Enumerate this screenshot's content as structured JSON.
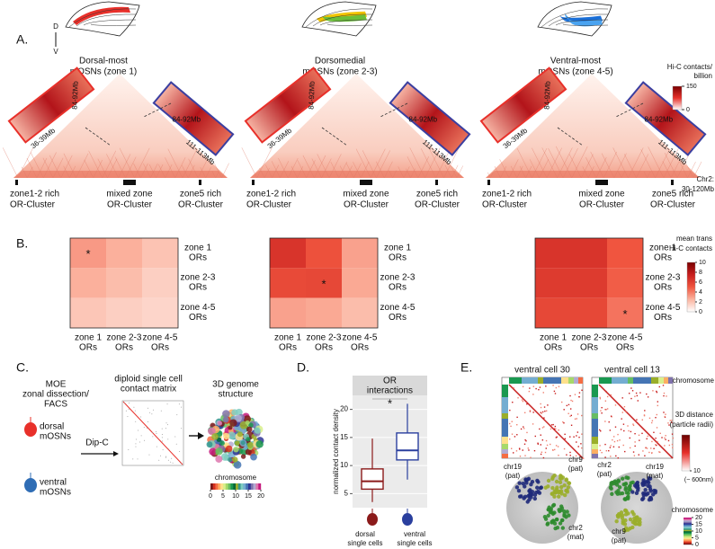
{
  "chromosome_colors": [
    "#7a1a1a",
    "#d7301f",
    "#f46d43",
    "#fdae61",
    "#fee08b",
    "#d9ef8b",
    "#a6d96a",
    "#66bd63",
    "#1a9850",
    "#006837",
    "#9aae2a",
    "#35978f",
    "#80cdc1",
    "#74add1",
    "#4575b4",
    "#313695",
    "#8073ac",
    "#b2abd2",
    "#de77ae",
    "#c51b7d"
  ],
  "panel_a": {
    "label": "A.",
    "axis": [
      "D",
      "V"
    ],
    "columns": [
      {
        "title": [
          "Dorsal-most",
          "mOSNs (zone 1)"
        ],
        "highlight": [
          "#e8302a"
        ]
      },
      {
        "title": [
          "Dorsomedial",
          "mOSNs (zone 2-3)"
        ],
        "highlight": [
          "#f2c400",
          "#6cbf3a"
        ]
      },
      {
        "title": [
          "Ventral-most",
          "mOSNs (zone 4-5)"
        ],
        "highlight": [
          "#1a6fd8",
          "#4aa3f0"
        ]
      }
    ],
    "inset_left": {
      "labels": [
        "36-39Mb",
        "84-92Mb"
      ],
      "color": "#e8302a"
    },
    "inset_right": {
      "labels": [
        "84-92Mb",
        "111-113Mb"
      ],
      "color": "#3b3fa0"
    },
    "clusters": [
      {
        "lines": [
          "zone1-2 rich",
          "OR-Cluster"
        ],
        "color": "#e8302a"
      },
      {
        "lines": [
          "mixed zone",
          "OR-Cluster"
        ],
        "color": "#111111"
      },
      {
        "lines": [
          "zone5 rich",
          "OR-Cluster"
        ],
        "color": "#3b3fa0"
      }
    ],
    "chromosome": [
      "Chr2:",
      "30-120Mb"
    ],
    "colorbar": {
      "title": [
        "Hi-C contacts/",
        "billion"
      ],
      "ticks": [
        150,
        0
      ],
      "lim": [
        0,
        150
      ],
      "colormap": [
        "#ffffff",
        "#e8302a",
        "#7a0000"
      ]
    }
  },
  "panel_b": {
    "label": "B.",
    "rows": [
      {
        "lines": [
          "zone 1",
          "ORs"
        ],
        "color": "#e8302a"
      },
      {
        "lines": [
          "zone 2-3",
          "ORs"
        ],
        "color": "#8cc63f"
      },
      {
        "lines": [
          "zone 4-5",
          "ORs"
        ],
        "color": "#3b3fa0"
      }
    ],
    "colormap": [
      "#ffffff",
      "#fbb4a0",
      "#f0553f",
      "#c81e1e",
      "#7a0000"
    ],
    "colorbar": {
      "title": [
        "mean trans",
        "Hi-C contacts"
      ],
      "ticks": [
        10,
        8,
        6,
        4,
        2,
        0
      ],
      "lim": [
        0,
        10
      ]
    }
  },
  "chart_data": [
    {
      "type": "heatmap",
      "values": [
        [
          3.2,
          2.6,
          2.0
        ],
        [
          2.6,
          2.2,
          1.6
        ],
        [
          1.9,
          1.6,
          1.4
        ]
      ],
      "cell_labels": [
        [
          "*",
          null,
          null
        ],
        [
          null,
          null,
          null
        ],
        [
          null,
          null,
          null
        ]
      ]
    },
    {
      "type": "heatmap",
      "values": [
        [
          6.5,
          5.2,
          3.0
        ],
        [
          5.5,
          5.6,
          2.8
        ],
        [
          3.0,
          2.8,
          2.2
        ]
      ],
      "cell_labels": [
        [
          null,
          null,
          null
        ],
        [
          null,
          "*",
          null
        ],
        [
          null,
          null,
          null
        ]
      ]
    },
    {
      "type": "heatmap",
      "values": [
        [
          6.5,
          6.5,
          5.0
        ],
        [
          6.2,
          6.2,
          4.8
        ],
        [
          5.6,
          5.6,
          4.2
        ]
      ],
      "cell_labels": [
        [
          null,
          null,
          null
        ],
        [
          null,
          null,
          null
        ],
        [
          null,
          null,
          "*"
        ]
      ]
    },
    {
      "type": "box",
      "title": [
        "OR",
        "interactions"
      ],
      "y_label": "normalized contact density",
      "categories": [
        [
          "dorsal",
          "single cells"
        ],
        [
          "ventral",
          "single cells"
        ]
      ],
      "boxes": [
        {
          "whislo": 3.5,
          "q1": 5.8,
          "med": 7.2,
          "q3": 9.4,
          "whishi": 14.8,
          "color": "#8b1a1a"
        },
        {
          "whislo": 7.5,
          "q1": 11.0,
          "med": 12.7,
          "q3": 15.8,
          "whishi": 21.0,
          "color": "#2a3f9e"
        }
      ],
      "significance": "*",
      "ylim": [
        2.5,
        22.5
      ],
      "yticks": [
        5,
        10,
        15,
        20
      ],
      "grid": true
    }
  ],
  "panel_c": {
    "label": "C.",
    "steps": [
      [
        "MOE",
        "zonal dissection/",
        "FACS"
      ],
      [
        "diploid single cell",
        "contact matrix"
      ],
      [
        "3D genome",
        "structure"
      ]
    ],
    "cells": [
      {
        "lines": [
          "dorsal",
          "mOSNs"
        ],
        "color": "#e8302a"
      },
      {
        "lines": [
          "ventral",
          "mOSNs"
        ],
        "color": "#2f6db5"
      }
    ],
    "method": "Dip-C",
    "colorbar": {
      "title": "chromosome",
      "ticks": [
        0,
        5,
        10,
        15,
        20
      ],
      "lim": [
        0,
        20
      ]
    }
  },
  "panel_d": {
    "label": "D."
  },
  "panel_e": {
    "label": "E.",
    "cells": [
      {
        "title": "ventral cell 30",
        "labels": [
          {
            "lines": [
              "chr19",
              "(pat)"
            ],
            "color": "#1f2a7a"
          },
          {
            "lines": [
              "chr9",
              "(pat)"
            ],
            "color": "#9aae2a"
          },
          {
            "lines": [
              "chr2",
              "(mat)"
            ],
            "color": "#2e8b2e"
          }
        ]
      },
      {
        "title": "ventral cell 13",
        "labels": [
          {
            "lines": [
              "chr2",
              "(pat)"
            ],
            "color": "#2e8b2e"
          },
          {
            "lines": [
              "chr19",
              "(mat)"
            ],
            "color": "#1f2a7a"
          },
          {
            "lines": [
              "chr9",
              "(pat)"
            ],
            "color": "#9aae2a"
          }
        ]
      }
    ],
    "matrix_label": "chromosome",
    "distance_colorbar": {
      "title": [
        "3D distance",
        "(particle radii)"
      ],
      "ticks": [
        {
          "value": 10,
          "label": "10"
        }
      ],
      "note": "(~ 600nm)",
      "lim": [
        0,
        10
      ]
    },
    "chromosome_colorbar": {
      "title": "chromosome",
      "ticks": [
        20,
        15,
        10,
        5,
        0
      ],
      "lim": [
        0,
        20
      ]
    }
  }
}
